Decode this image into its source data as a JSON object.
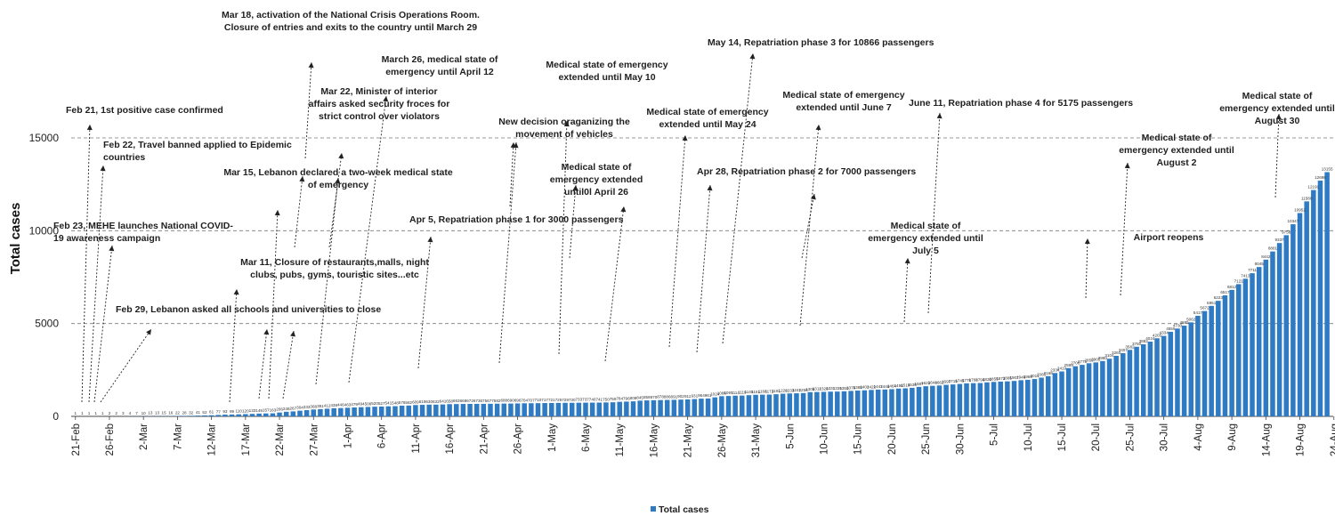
{
  "chart_data": {
    "type": "bar",
    "ylabel": "Total cases",
    "legend": "Total cases",
    "legend_position": "bottom",
    "grid": "horizontal dashed",
    "ylim": [
      0,
      15000
    ],
    "yticks": [
      0,
      5000,
      10000,
      15000
    ],
    "x_tick_labels": [
      "21-Feb",
      "26-Feb",
      "2-Mar",
      "7-Mar",
      "12-Mar",
      "17-Mar",
      "22-Mar",
      "27-Mar",
      "1-Apr",
      "6-Apr",
      "11-Apr",
      "16-Apr",
      "21-Apr",
      "26-Apr",
      "1-May",
      "6-May",
      "11-May",
      "16-May",
      "21-May",
      "26-May",
      "31-May",
      "5-Jun",
      "10-Jun",
      "15-Jun",
      "20-Jun",
      "25-Jun",
      "30-Jun",
      "5-Jul",
      "10-Jul",
      "15-Jul",
      "20-Jul",
      "25-Jul",
      "30-Jul",
      "4-Aug",
      "9-Aug",
      "14-Aug",
      "19-Aug",
      "24-Aug"
    ],
    "bar_color": "#2e7bc4",
    "categories_start": "21-Feb",
    "values": [
      1,
      1,
      1,
      1,
      1,
      2,
      2,
      3,
      4,
      7,
      10,
      13,
      13,
      15,
      16,
      22,
      28,
      32,
      41,
      52,
      61,
      77,
      93,
      99,
      110,
      120,
      133,
      149,
      157,
      163,
      206,
      248,
      267,
      304,
      333,
      368,
      391,
      412,
      438,
      446,
      463,
      479,
      494,
      508,
      520,
      527,
      541,
      548,
      576,
      582,
      609,
      619,
      630,
      632,
      641,
      658,
      663,
      668,
      672,
      673,
      675,
      677,
      682,
      688,
      690,
      696,
      704,
      707,
      710,
      717,
      721,
      725,
      729,
      730,
      733,
      737,
      740,
      741,
      750,
      759,
      784,
      796,
      809,
      845,
      859,
      870,
      878,
      886,
      891,
      902,
      911,
      931,
      954,
      961,
      1024,
      1086,
      1097,
      1114,
      1119,
      1140,
      1161,
      1168,
      1172,
      1191,
      1220,
      1233,
      1242,
      1256,
      1306,
      1312,
      1320,
      1331,
      1335,
      1350,
      1370,
      1388,
      1402,
      1422,
      1442,
      1446,
      1464,
      1495,
      1510,
      1536,
      1587,
      1622,
      1644,
      1662,
      1697,
      1719,
      1745,
      1778,
      1788,
      1796,
      1830,
      1855,
      1873,
      1885,
      1907,
      1946,
      1968,
      2011,
      2085,
      2168,
      2334,
      2419,
      2599,
      2700,
      2775,
      2859,
      2905,
      2980,
      3104,
      3260,
      3407,
      3582,
      3750,
      3882,
      4024,
      4205,
      4334,
      4555,
      4730,
      4885,
      5062,
      5417,
      5672,
      5951,
      6223,
      6517,
      6812,
      7121,
      7413,
      7711,
      8045,
      8442,
      8881,
      9337,
      9758,
      10347,
      10952,
      11580,
      12191,
      12698,
      13155
    ],
    "data_label_every": 1
  },
  "annotations": [
    {
      "id": "feb21",
      "lines": [
        "Feb 21, 1st positive case confirmed"
      ]
    },
    {
      "id": "feb22",
      "lines": [
        "Feb 22, Travel banned applied to Epidemic",
        "countries"
      ]
    },
    {
      "id": "feb23",
      "lines": [
        "Feb 23, MEHE launches National COVID-",
        "19 awareness campaign"
      ]
    },
    {
      "id": "feb29",
      "lines": [
        "Feb 29, Lebanon asked all schools and universities to close"
      ]
    },
    {
      "id": "mar11",
      "lines": [
        "Mar 11, Closure of restaurants,malls, night",
        "clubs, pubs, gyms, touristic sites...etc"
      ]
    },
    {
      "id": "mar15",
      "lines": [
        "Mar 15, Lebanon declared a two-week medical state",
        "of emergency"
      ]
    },
    {
      "id": "mar18",
      "lines": [
        "Mar 18, activation of the National Crisis Operations Room.",
        "Closure of entries and exits to the country until March 29"
      ]
    },
    {
      "id": "mar22",
      "lines": [
        "Mar 22, Minister of interior",
        "affairs asked security froces for",
        "strict control over violators"
      ]
    },
    {
      "id": "mar26",
      "lines": [
        "March 26, medical state of",
        "emergency until April 12"
      ]
    },
    {
      "id": "apr5",
      "lines": [
        "Apr 5, Repatriation phase 1 for 3000 passengers"
      ]
    },
    {
      "id": "newdec",
      "lines": [
        "New decision oraganizing the",
        "movement of vehicles"
      ]
    },
    {
      "id": "may10",
      "lines": [
        "Medical state of emergency",
        "extended until May 10"
      ]
    },
    {
      "id": "apr26",
      "lines": [
        "Medical state of",
        "emergency extended",
        "until0l April 26"
      ]
    },
    {
      "id": "may14",
      "lines": [
        "May 14, Repatriation phase 3 for 10866 passengers"
      ]
    },
    {
      "id": "may24",
      "lines": [
        "Medical state of emergency",
        "extended until May 24"
      ]
    },
    {
      "id": "apr28",
      "lines": [
        "Apr 28, Repatriation phase 2 for 7000 passengers"
      ]
    },
    {
      "id": "june7",
      "lines": [
        "Medical state of emergency",
        "extended until June  7"
      ]
    },
    {
      "id": "june11",
      "lines": [
        "June 11, Repatriation phase 4 for 5175 passengers"
      ]
    },
    {
      "id": "july5",
      "lines": [
        "Medical state of",
        "emergency extended until",
        "July 5"
      ]
    },
    {
      "id": "airport",
      "lines": [
        "Airport reopens"
      ]
    },
    {
      "id": "aug2",
      "lines": [
        "Medical state of",
        "emergency extended until",
        "August 2"
      ]
    },
    {
      "id": "aug30",
      "lines": [
        "Medical state of",
        "emergency extended until",
        "August 30"
      ]
    }
  ]
}
